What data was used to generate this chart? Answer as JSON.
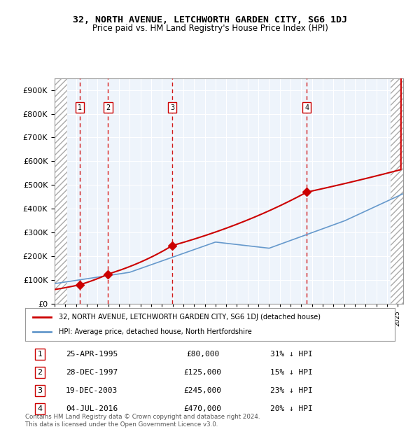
{
  "title": "32, NORTH AVENUE, LETCHWORTH GARDEN CITY, SG6 1DJ",
  "subtitle": "Price paid vs. HM Land Registry's House Price Index (HPI)",
  "ylabel_ticks": [
    "£0",
    "£100K",
    "£200K",
    "£300K",
    "£400K",
    "£500K",
    "£600K",
    "£700K",
    "£800K",
    "£900K"
  ],
  "ytick_values": [
    0,
    100000,
    200000,
    300000,
    400000,
    500000,
    600000,
    700000,
    800000,
    900000
  ],
  "ylim": [
    0,
    950000
  ],
  "xlim_start": 1993,
  "xlim_end": 2025.5,
  "sale_events": [
    {
      "num": 1,
      "year": 1995.32,
      "price": 80000,
      "date": "25-APR-1995",
      "pct": "31%",
      "dir": "↓"
    },
    {
      "num": 2,
      "year": 1997.99,
      "price": 125000,
      "date": "28-DEC-1997",
      "pct": "15%",
      "dir": "↓"
    },
    {
      "num": 3,
      "year": 2003.97,
      "price": 245000,
      "date": "19-DEC-2003",
      "pct": "23%",
      "dir": "↓"
    },
    {
      "num": 4,
      "year": 2016.51,
      "price": 470000,
      "date": "04-JUL-2016",
      "pct": "20%",
      "dir": "↓"
    }
  ],
  "legend_line1": "32, NORTH AVENUE, LETCHWORTH GARDEN CITY, SG6 1DJ (detached house)",
  "legend_line2": "HPI: Average price, detached house, North Hertfordshire",
  "footer": "Contains HM Land Registry data © Crown copyright and database right 2024.\nThis data is licensed under the Open Government Licence v3.0.",
  "red_color": "#cc0000",
  "blue_color": "#6699cc",
  "hatch_color": "#cccccc",
  "bg_color": "#ddeeff",
  "grid_color": "#ffffff",
  "plot_bg": "#eef4fb"
}
